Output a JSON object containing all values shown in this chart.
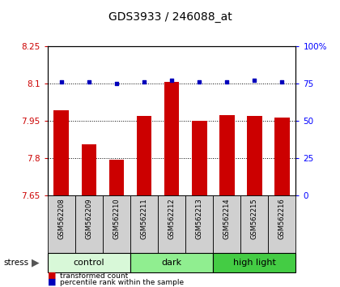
{
  "title": "GDS3933 / 246088_at",
  "samples": [
    "GSM562208",
    "GSM562209",
    "GSM562210",
    "GSM562211",
    "GSM562212",
    "GSM562213",
    "GSM562214",
    "GSM562215",
    "GSM562216"
  ],
  "bar_values": [
    7.99,
    7.855,
    7.792,
    7.97,
    8.105,
    7.948,
    7.972,
    7.97,
    7.962
  ],
  "percentile_values": [
    76,
    76,
    75,
    76,
    77,
    76,
    76,
    77,
    76
  ],
  "ylim_left": [
    7.65,
    8.25
  ],
  "ylim_right": [
    0,
    100
  ],
  "yticks_left": [
    7.65,
    7.8,
    7.95,
    8.1,
    8.25
  ],
  "yticks_right": [
    0,
    25,
    50,
    75,
    100
  ],
  "ytick_labels_right": [
    "0",
    "25",
    "50",
    "75",
    "100%"
  ],
  "groups": [
    {
      "label": "control",
      "start": 0,
      "end": 3,
      "color": "#d8f8d8"
    },
    {
      "label": "dark",
      "start": 3,
      "end": 6,
      "color": "#90ee90"
    },
    {
      "label": "high light",
      "start": 6,
      "end": 9,
      "color": "#44cc44"
    }
  ],
  "bar_color": "#cc0000",
  "blue_color": "#0000bb",
  "bar_width": 0.55,
  "background_color": "#ffffff",
  "stress_label": "stress",
  "legend_red_label": "transformed count",
  "legend_blue_label": "percentile rank within the sample",
  "title_fontsize": 10,
  "tick_fontsize": 7.5,
  "sample_fontsize": 6.0,
  "group_fontsize": 8
}
